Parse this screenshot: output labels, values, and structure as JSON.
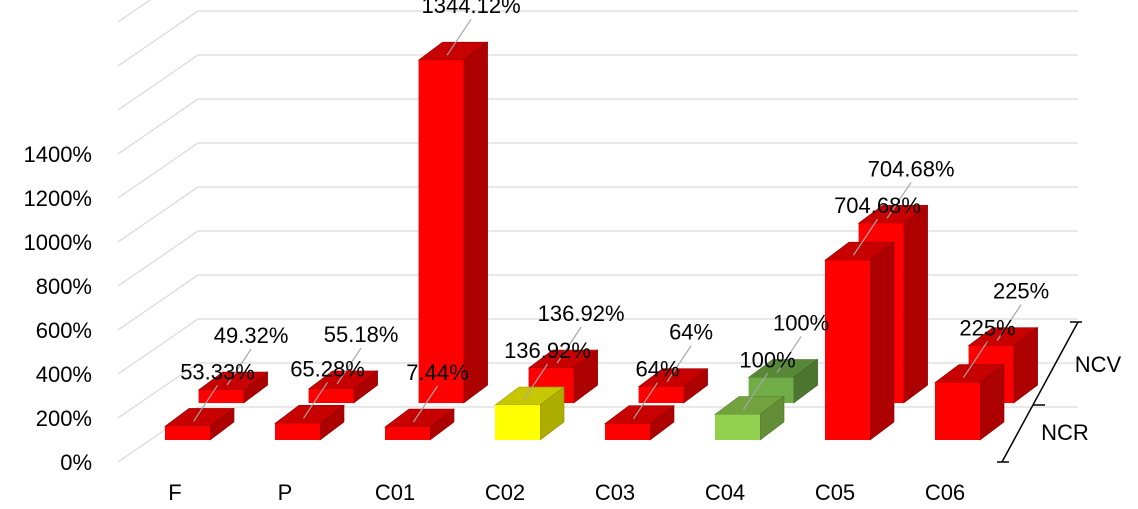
{
  "chart_data": {
    "type": "bar",
    "title": "",
    "xlabel": "",
    "ylabel": "",
    "categories": [
      "F",
      "P",
      "C01",
      "C02",
      "C03",
      "C04",
      "C05",
      "C06"
    ],
    "y_ticks": [
      "0%",
      "200%",
      "400%",
      "600%",
      "800%",
      "1000%",
      "1200%",
      "1400%"
    ],
    "ylim": [
      0,
      1400
    ],
    "grid": true,
    "series": [
      {
        "name": "NCR",
        "values": [
          53.33,
          65.28,
          7.44,
          136.92,
          64,
          100,
          704.68,
          225
        ],
        "labels": [
          "53.33%",
          "65.28%",
          "7.44%",
          "136.92%",
          "64%",
          "100%",
          "704.68%",
          "225%"
        ],
        "colors": [
          "#ff0000",
          "#ff0000",
          "#ff0000",
          "#ffff00",
          "#ff0000",
          "#92d050",
          "#ff0000",
          "#ff0000"
        ]
      },
      {
        "name": "NCV",
        "values": [
          49.32,
          55.18,
          1344.12,
          136.92,
          64,
          100,
          704.68,
          225
        ],
        "labels": [
          "49.32%",
          "55.18%",
          "1344.12%",
          "136.92%",
          "64%",
          "100%",
          "704.68%",
          "225%"
        ],
        "colors": [
          "#ff0000",
          "#ff0000",
          "#ff0000",
          "#ff0000",
          "#ff0000",
          "#70ad47",
          "#ff0000",
          "#ff0000"
        ]
      }
    ]
  }
}
